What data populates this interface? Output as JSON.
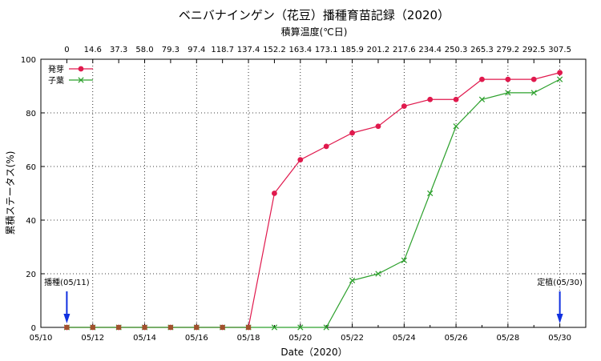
{
  "chart_data": {
    "type": "line",
    "title": "ベニバナインゲン（花豆）播種育苗記録（2020）",
    "top_axis_label": "積算温度(℃日)",
    "xlabel": "Date（2020）",
    "ylabel": "累積ステータス(%)",
    "ylim": [
      0,
      100
    ],
    "yticks": [
      0,
      20,
      40,
      60,
      80,
      100
    ],
    "xlim_day": [
      10,
      31
    ],
    "xticks": [
      "05/10",
      "05/12",
      "05/14",
      "05/16",
      "05/18",
      "05/20",
      "05/22",
      "05/24",
      "05/26",
      "05/28",
      "05/30"
    ],
    "grid": true,
    "legend_position": "top-left",
    "top_ticks": [
      "0",
      "14.6",
      "37.3",
      "58.0",
      "79.3",
      "97.4",
      "118.7",
      "137.4",
      "152.2",
      "163.4",
      "173.1",
      "185.9",
      "201.2",
      "217.6",
      "234.4",
      "250.3",
      "265.3",
      "279.2",
      "292.5",
      "307.5"
    ],
    "x": [
      "05/11",
      "05/12",
      "05/13",
      "05/14",
      "05/15",
      "05/16",
      "05/17",
      "05/18",
      "05/19",
      "05/20",
      "05/21",
      "05/22",
      "05/23",
      "05/24",
      "05/25",
      "05/26",
      "05/27",
      "05/28",
      "05/29",
      "05/30"
    ],
    "series": [
      {
        "name": "発芽",
        "color": "#e0194d",
        "marker": "circle",
        "values": [
          0,
          0,
          0,
          0,
          0,
          0,
          0,
          0,
          50,
          62.5,
          67.5,
          72.5,
          75,
          82.5,
          85,
          85,
          92.5,
          92.5,
          92.5,
          95
        ]
      },
      {
        "name": "子葉",
        "color": "#2ca02c",
        "marker": "x",
        "values": [
          0,
          0,
          0,
          0,
          0,
          0,
          0,
          0,
          0,
          0,
          0,
          17.5,
          20,
          25,
          50,
          75,
          85,
          87.5,
          87.5,
          92.5
        ]
      }
    ],
    "annotations": [
      {
        "text": "播種(05/11)",
        "x": "05/11",
        "color": "#1030e0"
      },
      {
        "text": "定植(05/30)",
        "x": "05/30",
        "color": "#1030e0"
      }
    ],
    "point_color": "#a0522d"
  }
}
